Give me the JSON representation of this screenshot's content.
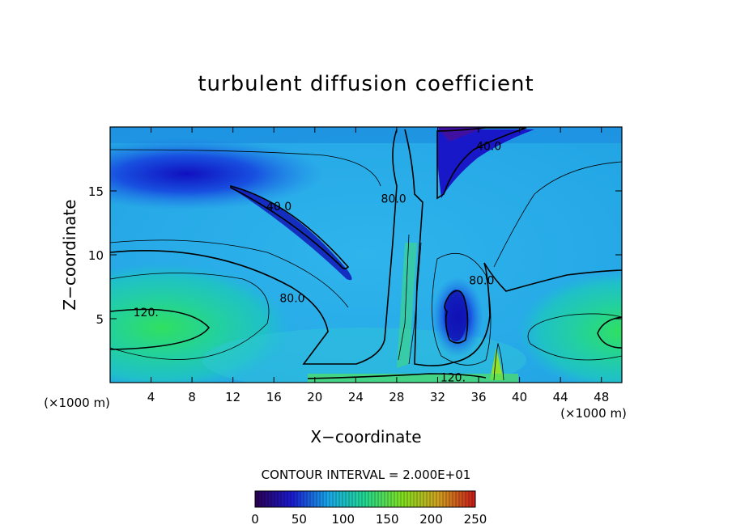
{
  "chart_data": {
    "type": "heatmap",
    "title": "turbulent diffusion coefficient",
    "xlabel": "X−coordinate",
    "ylabel": "Z−coordinate",
    "x_unit": "(×1000 m)",
    "z_unit": "(×1000 m)",
    "xlim": [
      0,
      50
    ],
    "ylim": [
      0,
      20
    ],
    "x_ticks": [
      4,
      8,
      12,
      16,
      20,
      24,
      28,
      32,
      36,
      40,
      44,
      48
    ],
    "y_ticks": [
      5,
      10,
      15
    ],
    "contour_interval_text": "CONTOUR INTERVAL = 2.000E+01",
    "contour_labels": [
      {
        "text": "120.",
        "x": 3.5,
        "y": 5.5
      },
      {
        "text": "80.0",
        "x": 17.8,
        "y": 6.6
      },
      {
        "text": "40.0",
        "x": 16.5,
        "y": 13.8
      },
      {
        "text": "80.0",
        "x": 27.7,
        "y": 14.4
      },
      {
        "text": "40.0",
        "x": 37.0,
        "y": 18.5
      },
      {
        "text": "80.0",
        "x": 36.3,
        "y": 8.0
      },
      {
        "text": "120.",
        "x": 33.5,
        "y": 0.4
      }
    ],
    "colorbar": {
      "min": 0,
      "max": 250,
      "ticks": [
        0,
        50,
        100,
        150,
        200,
        250
      ],
      "colors": [
        "#2a0050",
        "#1a1ad0",
        "#18a8e8",
        "#22d890",
        "#80e020",
        "#d0a020",
        "#c81818"
      ]
    }
  }
}
